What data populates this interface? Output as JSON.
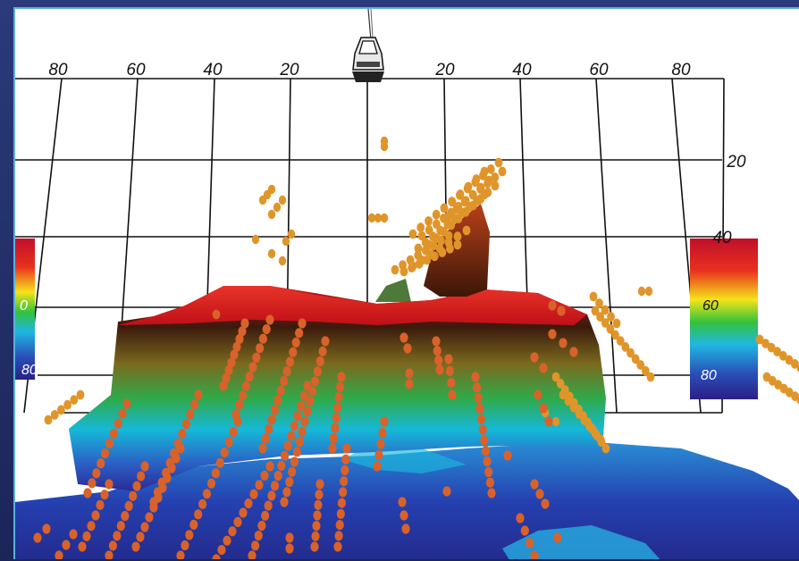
{
  "sonar_view": {
    "horizontal_scale": {
      "left_ticks": [
        "80",
        "60",
        "40",
        "20"
      ],
      "right_ticks": [
        "20",
        "40",
        "60",
        "80"
      ]
    },
    "depth_ticks": [
      "20",
      "40"
    ],
    "color_scale_right": {
      "labels": [
        "60",
        "80"
      ]
    },
    "color_scale_left": {
      "labels": [
        "0",
        "80"
      ]
    },
    "colors": {
      "frame": "#1d2a5c",
      "frame_border": "#5bb0de",
      "grid": "#111111",
      "target_light": "#e0952a",
      "target_dark": "#d9622a"
    },
    "icons": {
      "vessel": "boat-icon"
    }
  }
}
